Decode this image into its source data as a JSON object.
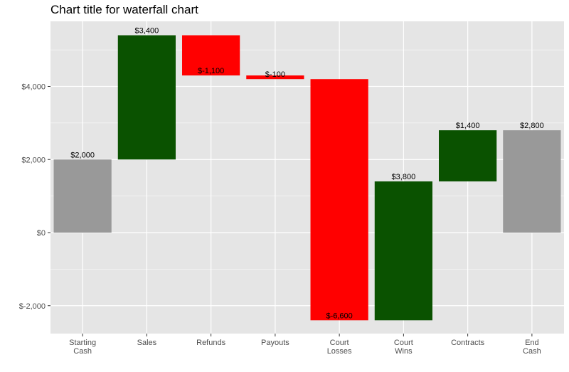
{
  "chart_data": {
    "type": "bar",
    "subtype": "waterfall",
    "title": "Chart title for waterfall chart",
    "xlabel": "",
    "ylabel": "",
    "ylim": [
      -2700,
      5700
    ],
    "y_ticks": [
      {
        "value": -2000,
        "label": "$-2,000"
      },
      {
        "value": 0,
        "label": "$0"
      },
      {
        "value": 2000,
        "label": "$2,000"
      },
      {
        "value": 4000,
        "label": "$4,000"
      }
    ],
    "grid": true,
    "legend": "none",
    "colors": {
      "total": "#999999",
      "increase": "#0a5200",
      "decrease": "#ff0000",
      "panel_background": "#e5e5e5",
      "grid": "#ffffff"
    },
    "bars": [
      {
        "category": [
          "Starting",
          "Cash"
        ],
        "start": 0,
        "end": 2000,
        "kind": "total",
        "label": "$2,000"
      },
      {
        "category": [
          "Sales"
        ],
        "start": 2000,
        "end": 5400,
        "kind": "increase",
        "label": "$3,400"
      },
      {
        "category": [
          "Refunds"
        ],
        "start": 5400,
        "end": 4300,
        "kind": "decrease",
        "label": "$-1,100"
      },
      {
        "category": [
          "Payouts"
        ],
        "start": 4300,
        "end": 4200,
        "kind": "decrease",
        "label": "$-100"
      },
      {
        "category": [
          "Court",
          "Losses"
        ],
        "start": 4200,
        "end": -2400,
        "kind": "decrease",
        "label": "$-6,600"
      },
      {
        "category": [
          "Court",
          "Wins"
        ],
        "start": -2400,
        "end": 1400,
        "kind": "increase",
        "label": "$3,800"
      },
      {
        "category": [
          "Contracts"
        ],
        "start": 1400,
        "end": 2800,
        "kind": "increase",
        "label": "$1,400"
      },
      {
        "category": [
          "End",
          "Cash"
        ],
        "start": 0,
        "end": 2800,
        "kind": "total",
        "label": "$2,800"
      }
    ]
  }
}
